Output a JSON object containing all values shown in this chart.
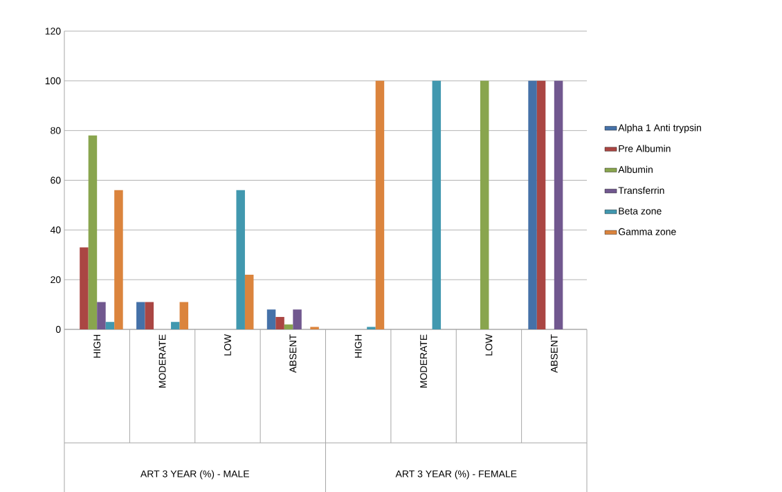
{
  "chart_data": {
    "type": "bar",
    "categories": [
      "HIGH",
      "MODERATE",
      "LOW",
      "ABSENT",
      "HIGH",
      "MODERATE",
      "LOW",
      "ABSENT"
    ],
    "series": [
      {
        "name": "Alpha 1  Anti trypsin",
        "color": "#4571a8",
        "values": [
          0,
          11,
          0,
          8,
          0,
          0,
          0,
          100
        ]
      },
      {
        "name": "Pre Albumin",
        "color": "#aa4643",
        "values": [
          33,
          11,
          0,
          5,
          0,
          0,
          0,
          100
        ]
      },
      {
        "name": "Albumin",
        "color": "#89a54e",
        "values": [
          78,
          0,
          0,
          2,
          0,
          0,
          100,
          0
        ]
      },
      {
        "name": "Transferrin",
        "color": "#71588f",
        "values": [
          11,
          0,
          0,
          8,
          0,
          0,
          0,
          100
        ]
      },
      {
        "name": "Beta zone",
        "color": "#4198af",
        "values": [
          3,
          3,
          56,
          0,
          1,
          100,
          0,
          0
        ]
      },
      {
        "name": "Gamma zone",
        "color": "#db843d",
        "values": [
          56,
          11,
          22,
          1,
          100,
          0,
          0,
          0
        ]
      }
    ],
    "ylim": [
      0,
      120
    ],
    "yticks": [
      0,
      20,
      40,
      60,
      80,
      100,
      120
    ],
    "grid": "y",
    "legend": "right",
    "annotations": [
      "ART 3 YEAR (%) - MALE",
      "ART  3 YEAR (%) - FEMALE"
    ]
  }
}
